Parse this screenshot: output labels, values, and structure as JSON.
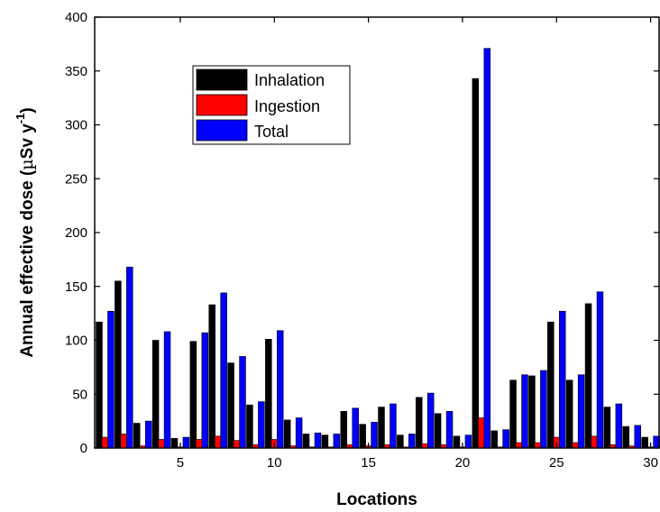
{
  "chart_data": {
    "type": "bar",
    "title": "",
    "xlabel": "Locations",
    "ylabel": "Annual effective dose (µSv y⁻¹)",
    "ylabel_main": "Annual effective dose (",
    "ylabel_mu": "µ",
    "ylabel_unit": "Sv y",
    "ylabel_exp": "-1",
    "ylabel_close": ")",
    "ylim": [
      0,
      400
    ],
    "yticks": [
      0,
      50,
      100,
      150,
      200,
      250,
      300,
      350,
      400
    ],
    "xlim": [
      0.45,
      30.45
    ],
    "xticks": [
      5,
      10,
      15,
      20,
      25,
      30
    ],
    "legend_position": "upper-left",
    "grid": false,
    "colors": {
      "Inhalation": "#000000",
      "Ingestion": "#ff0000",
      "Total": "#0000ff"
    },
    "categories": [
      1,
      2,
      3,
      4,
      5,
      6,
      7,
      8,
      9,
      10,
      11,
      12,
      13,
      14,
      15,
      16,
      17,
      18,
      19,
      20,
      21,
      22,
      23,
      24,
      25,
      26,
      27,
      28,
      29,
      30
    ],
    "series": [
      {
        "name": "Inhalation",
        "values": [
          117,
          155,
          23,
          100,
          9,
          99,
          133,
          79,
          40,
          101,
          26,
          13,
          12,
          34,
          22,
          38,
          12,
          47,
          32,
          11,
          343,
          16,
          63,
          67,
          117,
          63,
          134,
          38,
          20,
          10
        ]
      },
      {
        "name": "Ingestion",
        "values": [
          10,
          13,
          2,
          8,
          1,
          8,
          11,
          7,
          3,
          8,
          2,
          1,
          1,
          3,
          2,
          3,
          1,
          4,
          3,
          1,
          28,
          1,
          5,
          5,
          10,
          5,
          11,
          3,
          2,
          1
        ]
      },
      {
        "name": "Total",
        "values": [
          127,
          168,
          25,
          108,
          10,
          107,
          144,
          85,
          43,
          109,
          28,
          14,
          13,
          37,
          24,
          41,
          13,
          51,
          34,
          12,
          371,
          17,
          68,
          72,
          127,
          68,
          145,
          41,
          21,
          11
        ]
      }
    ]
  }
}
